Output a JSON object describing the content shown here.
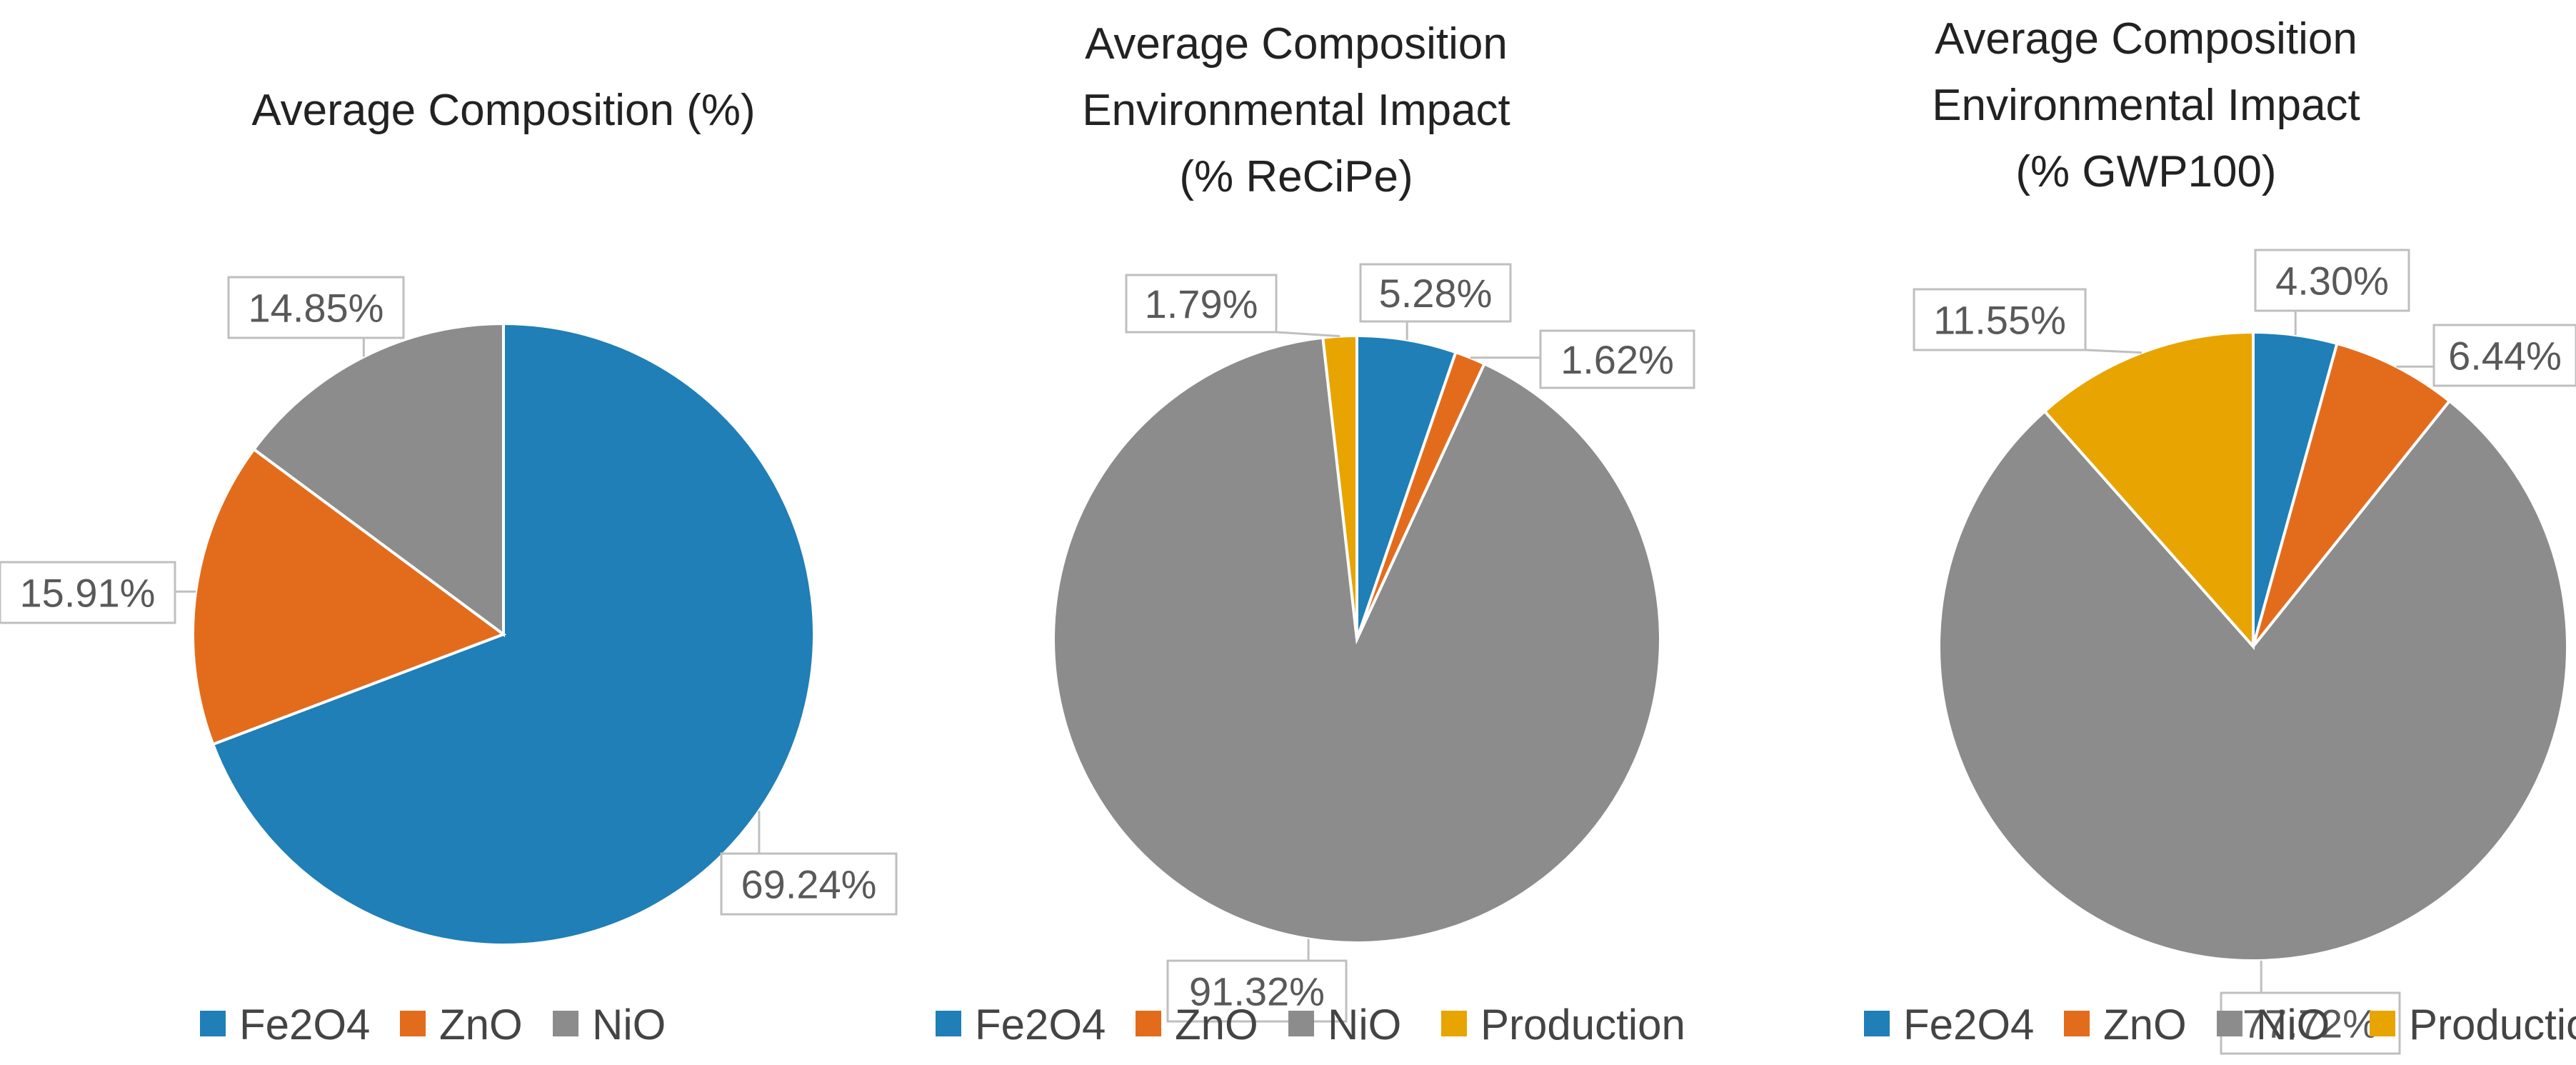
{
  "colors": {
    "Fe2O4": "#1f7fb6",
    "ZnO": "#e36c1c",
    "NiO": "#8c8c8c",
    "Production": "#e8a400"
  },
  "chart_data": [
    {
      "type": "pie",
      "title_lines": [
        "Average Composition (%)"
      ],
      "categories": [
        "Fe2O4",
        "ZnO",
        "NiO"
      ],
      "values": [
        69.24,
        15.91,
        14.85
      ],
      "labels": [
        "69.24%",
        "15.91%",
        "14.85%"
      ],
      "legend": [
        "Fe2O4",
        "ZnO",
        "NiO"
      ]
    },
    {
      "type": "pie",
      "title_lines": [
        "Average Composition",
        "Environmental Impact",
        "(% ReCiPe)"
      ],
      "categories": [
        "Fe2O4",
        "ZnO",
        "NiO",
        "Production"
      ],
      "values": [
        5.28,
        1.62,
        91.32,
        1.79
      ],
      "labels": [
        "5.28%",
        "1.62%",
        "91.32%",
        "1.79%"
      ],
      "legend": [
        "Fe2O4",
        "ZnO",
        "NiO",
        "Production"
      ]
    },
    {
      "type": "pie",
      "title_lines": [
        "Average Composition",
        "Environmental Impact",
        "(% GWP100)"
      ],
      "categories": [
        "Fe2O4",
        "ZnO",
        "NiO",
        "Production"
      ],
      "values": [
        4.3,
        6.44,
        77.72,
        11.55
      ],
      "labels": [
        "4.30%",
        "6.44%",
        "77.72%",
        "11.55%"
      ],
      "legend": [
        "Fe2O4",
        "ZnO",
        "NiO",
        "Production"
      ]
    }
  ]
}
